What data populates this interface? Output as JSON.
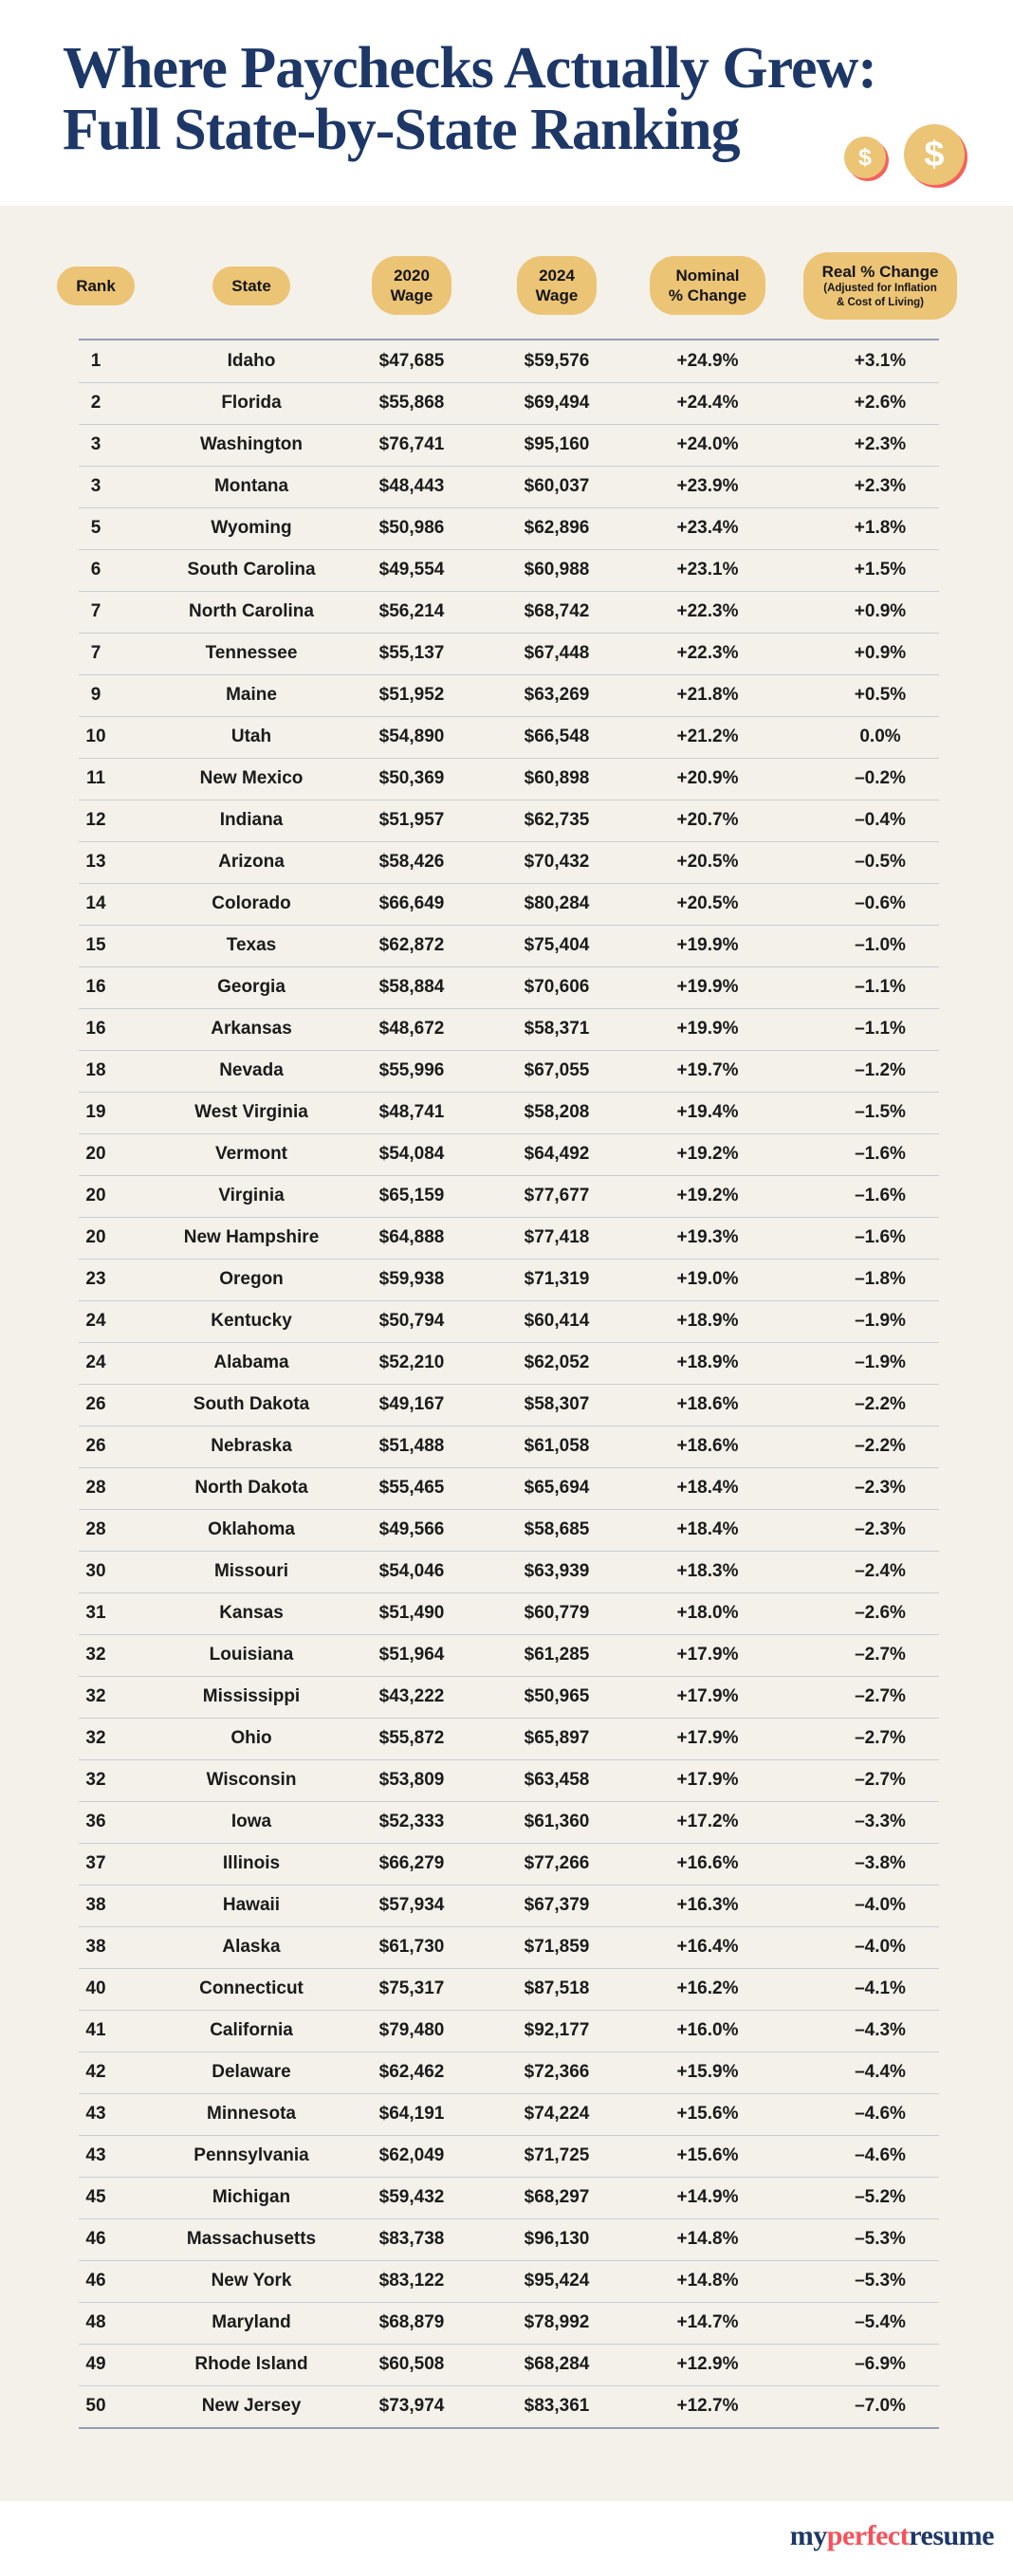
{
  "header": {
    "title_line1": "Where Paychecks Actually Grew:",
    "title_line2": "Full State-by-State Ranking",
    "coin_symbol": "$"
  },
  "table": {
    "columns": [
      {
        "key": "rank",
        "lines": [
          "Rank"
        ]
      },
      {
        "key": "state",
        "lines": [
          "State"
        ]
      },
      {
        "key": "wage2020",
        "lines": [
          "2020",
          "Wage"
        ]
      },
      {
        "key": "wage2024",
        "lines": [
          "2024",
          "Wage"
        ]
      },
      {
        "key": "nominal",
        "lines": [
          "Nominal",
          "% Change"
        ]
      },
      {
        "key": "real",
        "lines": [
          "Real % Change"
        ],
        "sub_lines": [
          "(Adjusted for Inflation",
          "& Cost of Living)"
        ]
      }
    ],
    "rows": [
      {
        "rank": "1",
        "state": "Idaho",
        "wage2020": "$47,685",
        "wage2024": "$59,576",
        "nominal": "+24.9%",
        "real": "+3.1%"
      },
      {
        "rank": "2",
        "state": "Florida",
        "wage2020": "$55,868",
        "wage2024": "$69,494",
        "nominal": "+24.4%",
        "real": "+2.6%"
      },
      {
        "rank": "3",
        "state": "Washington",
        "wage2020": "$76,741",
        "wage2024": "$95,160",
        "nominal": "+24.0%",
        "real": "+2.3%"
      },
      {
        "rank": "3",
        "state": "Montana",
        "wage2020": "$48,443",
        "wage2024": "$60,037",
        "nominal": "+23.9%",
        "real": "+2.3%"
      },
      {
        "rank": "5",
        "state": "Wyoming",
        "wage2020": "$50,986",
        "wage2024": "$62,896",
        "nominal": "+23.4%",
        "real": "+1.8%"
      },
      {
        "rank": "6",
        "state": "South Carolina",
        "wage2020": "$49,554",
        "wage2024": "$60,988",
        "nominal": "+23.1%",
        "real": "+1.5%"
      },
      {
        "rank": "7",
        "state": "North Carolina",
        "wage2020": "$56,214",
        "wage2024": "$68,742",
        "nominal": "+22.3%",
        "real": "+0.9%"
      },
      {
        "rank": "7",
        "state": "Tennessee",
        "wage2020": "$55,137",
        "wage2024": "$67,448",
        "nominal": "+22.3%",
        "real": "+0.9%"
      },
      {
        "rank": "9",
        "state": "Maine",
        "wage2020": "$51,952",
        "wage2024": "$63,269",
        "nominal": "+21.8%",
        "real": "+0.5%"
      },
      {
        "rank": "10",
        "state": "Utah",
        "wage2020": "$54,890",
        "wage2024": "$66,548",
        "nominal": "+21.2%",
        "real": "0.0%"
      },
      {
        "rank": "11",
        "state": "New Mexico",
        "wage2020": "$50,369",
        "wage2024": "$60,898",
        "nominal": "+20.9%",
        "real": "–0.2%"
      },
      {
        "rank": "12",
        "state": "Indiana",
        "wage2020": "$51,957",
        "wage2024": "$62,735",
        "nominal": "+20.7%",
        "real": "–0.4%"
      },
      {
        "rank": "13",
        "state": "Arizona",
        "wage2020": "$58,426",
        "wage2024": "$70,432",
        "nominal": "+20.5%",
        "real": "–0.5%"
      },
      {
        "rank": "14",
        "state": "Colorado",
        "wage2020": "$66,649",
        "wage2024": "$80,284",
        "nominal": "+20.5%",
        "real": "–0.6%"
      },
      {
        "rank": "15",
        "state": "Texas",
        "wage2020": "$62,872",
        "wage2024": "$75,404",
        "nominal": "+19.9%",
        "real": "–1.0%"
      },
      {
        "rank": "16",
        "state": "Georgia",
        "wage2020": "$58,884",
        "wage2024": "$70,606",
        "nominal": "+19.9%",
        "real": "–1.1%"
      },
      {
        "rank": "16",
        "state": "Arkansas",
        "wage2020": "$48,672",
        "wage2024": "$58,371",
        "nominal": "+19.9%",
        "real": "–1.1%"
      },
      {
        "rank": "18",
        "state": "Nevada",
        "wage2020": "$55,996",
        "wage2024": "$67,055",
        "nominal": "+19.7%",
        "real": "–1.2%"
      },
      {
        "rank": "19",
        "state": "West Virginia",
        "wage2020": "$48,741",
        "wage2024": "$58,208",
        "nominal": "+19.4%",
        "real": "–1.5%"
      },
      {
        "rank": "20",
        "state": "Vermont",
        "wage2020": "$54,084",
        "wage2024": "$64,492",
        "nominal": "+19.2%",
        "real": "–1.6%"
      },
      {
        "rank": "20",
        "state": "Virginia",
        "wage2020": "$65,159",
        "wage2024": "$77,677",
        "nominal": "+19.2%",
        "real": "–1.6%"
      },
      {
        "rank": "20",
        "state": "New Hampshire",
        "wage2020": "$64,888",
        "wage2024": "$77,418",
        "nominal": "+19.3%",
        "real": "–1.6%"
      },
      {
        "rank": "23",
        "state": "Oregon",
        "wage2020": "$59,938",
        "wage2024": "$71,319",
        "nominal": "+19.0%",
        "real": "–1.8%"
      },
      {
        "rank": "24",
        "state": "Kentucky",
        "wage2020": "$50,794",
        "wage2024": "$60,414",
        "nominal": "+18.9%",
        "real": "–1.9%"
      },
      {
        "rank": "24",
        "state": "Alabama",
        "wage2020": "$52,210",
        "wage2024": "$62,052",
        "nominal": "+18.9%",
        "real": "–1.9%"
      },
      {
        "rank": "26",
        "state": "South Dakota",
        "wage2020": "$49,167",
        "wage2024": "$58,307",
        "nominal": "+18.6%",
        "real": "–2.2%"
      },
      {
        "rank": "26",
        "state": "Nebraska",
        "wage2020": "$51,488",
        "wage2024": "$61,058",
        "nominal": "+18.6%",
        "real": "–2.2%"
      },
      {
        "rank": "28",
        "state": "North Dakota",
        "wage2020": "$55,465",
        "wage2024": "$65,694",
        "nominal": "+18.4%",
        "real": "–2.3%"
      },
      {
        "rank": "28",
        "state": "Oklahoma",
        "wage2020": "$49,566",
        "wage2024": "$58,685",
        "nominal": "+18.4%",
        "real": "–2.3%"
      },
      {
        "rank": "30",
        "state": "Missouri",
        "wage2020": "$54,046",
        "wage2024": "$63,939",
        "nominal": "+18.3%",
        "real": "–2.4%"
      },
      {
        "rank": "31",
        "state": "Kansas",
        "wage2020": "$51,490",
        "wage2024": "$60,779",
        "nominal": "+18.0%",
        "real": "–2.6%"
      },
      {
        "rank": "32",
        "state": "Louisiana",
        "wage2020": "$51,964",
        "wage2024": "$61,285",
        "nominal": "+17.9%",
        "real": "–2.7%"
      },
      {
        "rank": "32",
        "state": "Mississippi",
        "wage2020": "$43,222",
        "wage2024": "$50,965",
        "nominal": "+17.9%",
        "real": "–2.7%"
      },
      {
        "rank": "32",
        "state": "Ohio",
        "wage2020": "$55,872",
        "wage2024": "$65,897",
        "nominal": "+17.9%",
        "real": "–2.7%"
      },
      {
        "rank": "32",
        "state": "Wisconsin",
        "wage2020": "$53,809",
        "wage2024": "$63,458",
        "nominal": "+17.9%",
        "real": "–2.7%"
      },
      {
        "rank": "36",
        "state": "Iowa",
        "wage2020": "$52,333",
        "wage2024": "$61,360",
        "nominal": "+17.2%",
        "real": "–3.3%"
      },
      {
        "rank": "37",
        "state": "Illinois",
        "wage2020": "$66,279",
        "wage2024": "$77,266",
        "nominal": "+16.6%",
        "real": "–3.8%"
      },
      {
        "rank": "38",
        "state": "Hawaii",
        "wage2020": "$57,934",
        "wage2024": "$67,379",
        "nominal": "+16.3%",
        "real": "–4.0%"
      },
      {
        "rank": "38",
        "state": "Alaska",
        "wage2020": "$61,730",
        "wage2024": "$71,859",
        "nominal": "+16.4%",
        "real": "–4.0%"
      },
      {
        "rank": "40",
        "state": "Connecticut",
        "wage2020": "$75,317",
        "wage2024": "$87,518",
        "nominal": "+16.2%",
        "real": "–4.1%"
      },
      {
        "rank": "41",
        "state": "California",
        "wage2020": "$79,480",
        "wage2024": "$92,177",
        "nominal": "+16.0%",
        "real": "–4.3%"
      },
      {
        "rank": "42",
        "state": "Delaware",
        "wage2020": "$62,462",
        "wage2024": "$72,366",
        "nominal": "+15.9%",
        "real": "–4.4%"
      },
      {
        "rank": "43",
        "state": "Minnesota",
        "wage2020": "$64,191",
        "wage2024": "$74,224",
        "nominal": "+15.6%",
        "real": "–4.6%"
      },
      {
        "rank": "43",
        "state": "Pennsylvania",
        "wage2020": "$62,049",
        "wage2024": "$71,725",
        "nominal": "+15.6%",
        "real": "–4.6%"
      },
      {
        "rank": "45",
        "state": "Michigan",
        "wage2020": "$59,432",
        "wage2024": "$68,297",
        "nominal": "+14.9%",
        "real": "–5.2%"
      },
      {
        "rank": "46",
        "state": "Massachusetts",
        "wage2020": "$83,738",
        "wage2024": "$96,130",
        "nominal": "+14.8%",
        "real": "–5.3%"
      },
      {
        "rank": "46",
        "state": "New York",
        "wage2020": "$83,122",
        "wage2024": "$95,424",
        "nominal": "+14.8%",
        "real": "–5.3%"
      },
      {
        "rank": "48",
        "state": "Maryland",
        "wage2020": "$68,879",
        "wage2024": "$78,992",
        "nominal": "+14.7%",
        "real": "–5.4%"
      },
      {
        "rank": "49",
        "state": "Rhode Island",
        "wage2020": "$60,508",
        "wage2024": "$68,284",
        "nominal": "+12.9%",
        "real": "–6.9%"
      },
      {
        "rank": "50",
        "state": "New Jersey",
        "wage2020": "$73,974",
        "wage2024": "$83,361",
        "nominal": "+12.7%",
        "real": "–7.0%"
      }
    ]
  },
  "footer": {
    "logo_parts": [
      {
        "text": "my",
        "color": "navy"
      },
      {
        "text": "perfect",
        "color": "red"
      },
      {
        "text": "resume",
        "color": "navy"
      }
    ]
  },
  "colors": {
    "navy": "#1d3767",
    "gold": "#ecc476",
    "coral": "#f3625d",
    "cream": "#f4f1ea",
    "logo_red": "#f6515a",
    "text": "#1b1b1b",
    "line_strong": "#93a0b4",
    "line_soft": "#c9cdd4"
  },
  "chart_data": {
    "type": "table",
    "title": "Where Paychecks Actually Grew: Full State-by-State Ranking",
    "columns": [
      "Rank",
      "State",
      "2020 Wage",
      "2024 Wage",
      "Nominal % Change",
      "Real % Change (Adjusted for Inflation & Cost of Living)"
    ],
    "rows": [
      [
        "1",
        "Idaho",
        "$47,685",
        "$59,576",
        "+24.9%",
        "+3.1%"
      ],
      [
        "2",
        "Florida",
        "$55,868",
        "$69,494",
        "+24.4%",
        "+2.6%"
      ],
      [
        "3",
        "Washington",
        "$76,741",
        "$95,160",
        "+24.0%",
        "+2.3%"
      ],
      [
        "3",
        "Montana",
        "$48,443",
        "$60,037",
        "+23.9%",
        "+2.3%"
      ],
      [
        "5",
        "Wyoming",
        "$50,986",
        "$62,896",
        "+23.4%",
        "+1.8%"
      ],
      [
        "6",
        "South Carolina",
        "$49,554",
        "$60,988",
        "+23.1%",
        "+1.5%"
      ],
      [
        "7",
        "North Carolina",
        "$56,214",
        "$68,742",
        "+22.3%",
        "+0.9%"
      ],
      [
        "7",
        "Tennessee",
        "$55,137",
        "$67,448",
        "+22.3%",
        "+0.9%"
      ],
      [
        "9",
        "Maine",
        "$51,952",
        "$63,269",
        "+21.8%",
        "+0.5%"
      ],
      [
        "10",
        "Utah",
        "$54,890",
        "$66,548",
        "+21.2%",
        "0.0%"
      ],
      [
        "11",
        "New Mexico",
        "$50,369",
        "$60,898",
        "+20.9%",
        "–0.2%"
      ],
      [
        "12",
        "Indiana",
        "$51,957",
        "$62,735",
        "+20.7%",
        "–0.4%"
      ],
      [
        "13",
        "Arizona",
        "$58,426",
        "$70,432",
        "+20.5%",
        "–0.5%"
      ],
      [
        "14",
        "Colorado",
        "$66,649",
        "$80,284",
        "+20.5%",
        "–0.6%"
      ],
      [
        "15",
        "Texas",
        "$62,872",
        "$75,404",
        "+19.9%",
        "–1.0%"
      ],
      [
        "16",
        "Georgia",
        "$58,884",
        "$70,606",
        "+19.9%",
        "–1.1%"
      ],
      [
        "16",
        "Arkansas",
        "$48,672",
        "$58,371",
        "+19.9%",
        "–1.1%"
      ],
      [
        "18",
        "Nevada",
        "$55,996",
        "$67,055",
        "+19.7%",
        "–1.2%"
      ],
      [
        "19",
        "West Virginia",
        "$48,741",
        "$58,208",
        "+19.4%",
        "–1.5%"
      ],
      [
        "20",
        "Vermont",
        "$54,084",
        "$64,492",
        "+19.2%",
        "–1.6%"
      ],
      [
        "20",
        "Virginia",
        "$65,159",
        "$77,677",
        "+19.2%",
        "–1.6%"
      ],
      [
        "20",
        "New Hampshire",
        "$64,888",
        "$77,418",
        "+19.3%",
        "–1.6%"
      ],
      [
        "23",
        "Oregon",
        "$59,938",
        "$71,319",
        "+19.0%",
        "–1.8%"
      ],
      [
        "24",
        "Kentucky",
        "$50,794",
        "$60,414",
        "+18.9%",
        "–1.9%"
      ],
      [
        "24",
        "Alabama",
        "$52,210",
        "$62,052",
        "+18.9%",
        "–1.9%"
      ],
      [
        "26",
        "South Dakota",
        "$49,167",
        "$58,307",
        "+18.6%",
        "–2.2%"
      ],
      [
        "26",
        "Nebraska",
        "$51,488",
        "$61,058",
        "+18.6%",
        "–2.2%"
      ],
      [
        "28",
        "North Dakota",
        "$55,465",
        "$65,694",
        "+18.4%",
        "–2.3%"
      ],
      [
        "28",
        "Oklahoma",
        "$49,566",
        "$58,685",
        "+18.4%",
        "–2.3%"
      ],
      [
        "30",
        "Missouri",
        "$54,046",
        "$63,939",
        "+18.3%",
        "–2.4%"
      ],
      [
        "31",
        "Kansas",
        "$51,490",
        "$60,779",
        "+18.0%",
        "–2.6%"
      ],
      [
        "32",
        "Louisiana",
        "$51,964",
        "$61,285",
        "+17.9%",
        "–2.7%"
      ],
      [
        "32",
        "Mississippi",
        "$43,222",
        "$50,965",
        "+17.9%",
        "–2.7%"
      ],
      [
        "32",
        "Ohio",
        "$55,872",
        "$65,897",
        "+17.9%",
        "–2.7%"
      ],
      [
        "32",
        "Wisconsin",
        "$53,809",
        "$63,458",
        "+17.9%",
        "–2.7%"
      ],
      [
        "36",
        "Iowa",
        "$52,333",
        "$61,360",
        "+17.2%",
        "–3.3%"
      ],
      [
        "37",
        "Illinois",
        "$66,279",
        "$77,266",
        "+16.6%",
        "–3.8%"
      ],
      [
        "38",
        "Hawaii",
        "$57,934",
        "$67,379",
        "+16.3%",
        "–4.0%"
      ],
      [
        "38",
        "Alaska",
        "$61,730",
        "$71,859",
        "+16.4%",
        "–4.0%"
      ],
      [
        "40",
        "Connecticut",
        "$75,317",
        "$87,518",
        "+16.2%",
        "–4.1%"
      ],
      [
        "41",
        "California",
        "$79,480",
        "$92,177",
        "+16.0%",
        "–4.3%"
      ],
      [
        "42",
        "Delaware",
        "$62,462",
        "$72,366",
        "+15.9%",
        "–4.4%"
      ],
      [
        "43",
        "Minnesota",
        "$64,191",
        "$74,224",
        "+15.6%",
        "–4.6%"
      ],
      [
        "43",
        "Pennsylvania",
        "$62,049",
        "$71,725",
        "+15.6%",
        "–4.6%"
      ],
      [
        "45",
        "Michigan",
        "$59,432",
        "$68,297",
        "+14.9%",
        "–5.2%"
      ],
      [
        "46",
        "Massachusetts",
        "$83,738",
        "$96,130",
        "+14.8%",
        "–5.3%"
      ],
      [
        "46",
        "New York",
        "$83,122",
        "$95,424",
        "+14.8%",
        "–5.3%"
      ],
      [
        "48",
        "Maryland",
        "$68,879",
        "$78,992",
        "+14.7%",
        "–5.4%"
      ],
      [
        "49",
        "Rhode Island",
        "$60,508",
        "$68,284",
        "+12.9%",
        "–6.9%"
      ],
      [
        "50",
        "New Jersey",
        "$73,974",
        "$83,361",
        "+12.7%",
        "–7.0%"
      ]
    ]
  }
}
